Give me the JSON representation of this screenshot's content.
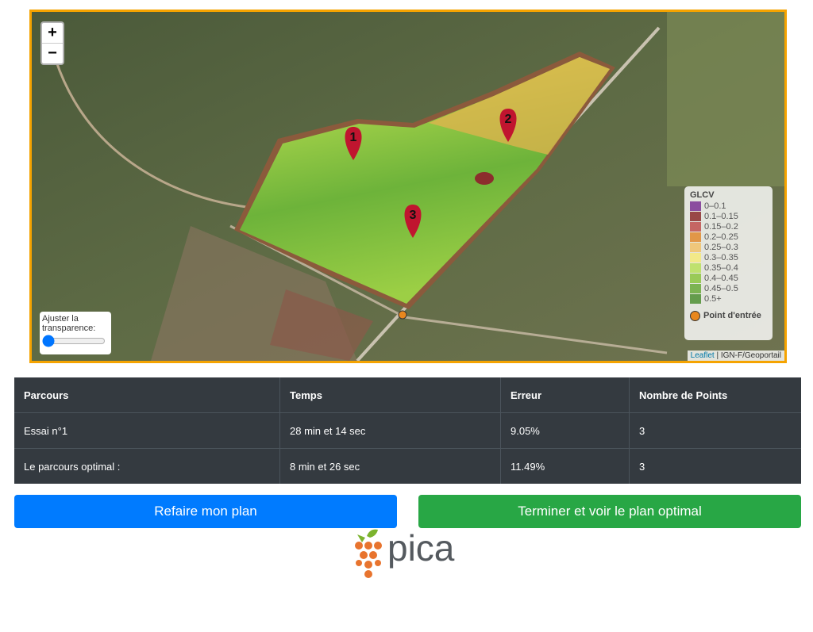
{
  "map": {
    "zoom_in": "+",
    "zoom_out": "−",
    "markers": [
      {
        "label": "1"
      },
      {
        "label": "2"
      },
      {
        "label": "3"
      }
    ],
    "transparency_label": "Ajuster la transparence:",
    "legend": {
      "title": "GLCV",
      "items": [
        {
          "label": "0–0.1",
          "color": "#7b3294"
        },
        {
          "label": "0.1–0.15",
          "color": "#8c2d2d"
        },
        {
          "label": "0.15–0.2",
          "color": "#c0504d"
        },
        {
          "label": "0.2–0.25",
          "color": "#e08a2e"
        },
        {
          "label": "0.25–0.3",
          "color": "#f1c26a"
        },
        {
          "label": "0.3–0.35",
          "color": "#f5ea7a"
        },
        {
          "label": "0.35–0.4",
          "color": "#b8e05a"
        },
        {
          "label": "0.4–0.45",
          "color": "#8cc63f"
        },
        {
          "label": "0.45–0.5",
          "color": "#6aaa3a"
        },
        {
          "label": "0.5+",
          "color": "#4e8f32"
        }
      ],
      "entry_point": "Point d'entrée"
    },
    "attribution": {
      "link": "Leaflet",
      "separator": "|",
      "source": "IGN-F/Geoportail"
    }
  },
  "table": {
    "headers": [
      "Parcours",
      "Temps",
      "Erreur",
      "Nombre de Points"
    ],
    "rows": [
      [
        "Essai n°1",
        "28 min et 14 sec",
        "9.05%",
        "3"
      ],
      [
        "Le parcours optimal :",
        "8 min et 26 sec",
        "11.49%",
        "3"
      ]
    ]
  },
  "buttons": {
    "redo": "Refaire mon plan",
    "finish": "Terminer et voir le plan optimal"
  },
  "logo": {
    "text": "pica"
  }
}
